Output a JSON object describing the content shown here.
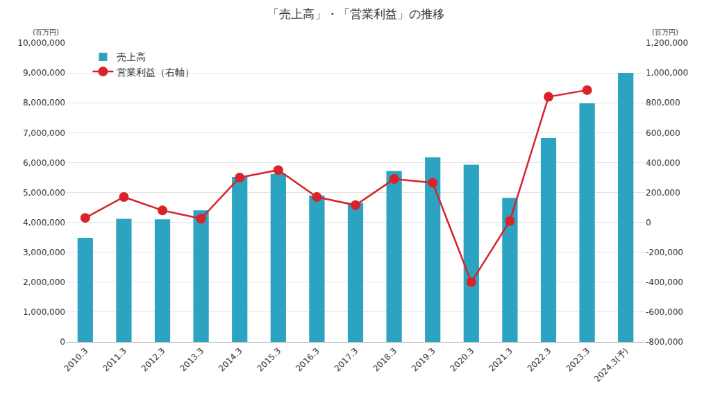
{
  "chart_data": {
    "type": "bar",
    "title": "「売上高」・「営業利益」の推移",
    "ylabel": "(百万円)",
    "y2label": "(百万円)",
    "categories": [
      "2010.3",
      "2011.3",
      "2012.3",
      "2013.3",
      "2014.3",
      "2015.3",
      "2016.3",
      "2017.3",
      "2018.3",
      "2019.3",
      "2020.3",
      "2021.3",
      "2022.3",
      "2023.3",
      "2024.3(予)"
    ],
    "series": [
      {
        "name": "売上高",
        "type": "bar",
        "color": "#2ba3c1",
        "values": [
          3480000,
          4120000,
          4100000,
          4400000,
          5520000,
          5620000,
          4900000,
          4650000,
          5720000,
          6180000,
          5930000,
          4820000,
          6820000,
          7980000,
          9000000
        ]
      },
      {
        "name": "営業利益（右軸）",
        "type": "line",
        "axis": "y2",
        "color": "#d9232b",
        "marker": "circle",
        "line_style": "solid",
        "values": [
          30000,
          170000,
          80000,
          25000,
          300000,
          350000,
          170000,
          115000,
          290000,
          265000,
          -400000,
          10000,
          840000,
          885000,
          null
        ]
      }
    ],
    "ylim": [
      0,
      10000000
    ],
    "yticks": [
      0,
      {
        "value": 1000000,
        "label": "1,000,000"
      },
      {
        "value": 2000000,
        "label": "2,000,000"
      },
      {
        "value": 3000000,
        "label": "3,000,000"
      },
      {
        "value": 4000000,
        "label": "4,000,000"
      },
      {
        "value": 5000000,
        "label": "5,000,000"
      },
      {
        "value": 6000000,
        "label": "6,000,000"
      },
      {
        "value": 7000000,
        "label": "7,000,000"
      },
      {
        "value": 8000000,
        "label": "8,000,000"
      },
      {
        "value": 9000000,
        "label": "9,000,000"
      },
      {
        "value": 10000000,
        "label": "10,000,000"
      }
    ],
    "y2lim": [
      -800000,
      1200000
    ],
    "y2ticks": [
      {
        "value": -800000,
        "label": "-800,000"
      },
      {
        "value": -600000,
        "label": "-600,000"
      },
      {
        "value": -400000,
        "label": "-400,000"
      },
      {
        "value": -200000,
        "label": "-200,000"
      },
      0,
      {
        "value": 200000,
        "label": "200,000"
      },
      {
        "value": 400000,
        "label": "400,000"
      },
      {
        "value": 600000,
        "label": "600,000"
      },
      {
        "value": 800000,
        "label": "800,000"
      },
      {
        "value": 1000000,
        "label": "1,000,000"
      },
      {
        "value": 1200000,
        "label": "1,200,000"
      }
    ],
    "grid": true,
    "legend": "upper left"
  }
}
